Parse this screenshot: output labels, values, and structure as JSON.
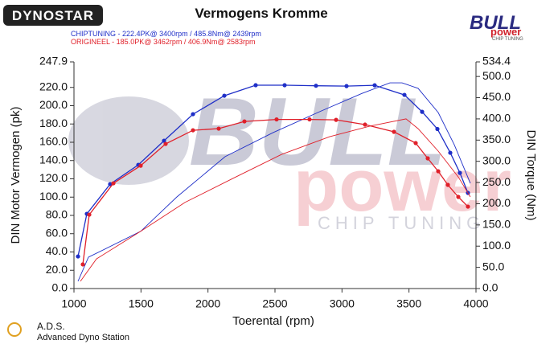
{
  "chart_data": {
    "type": "line",
    "title": "Vermogens Kromme",
    "logos": {
      "left": "DYNOSTAR",
      "brand": "BULL",
      "brand2": "power",
      "brand3": "CHIP TUNING",
      "station": "A.D.S.",
      "station_name": "Advanced Dyno Station"
    },
    "x_label": "Toerental (rpm)",
    "y_label": "DIN Motor Vermogen (pk)",
    "y2_label": "DIN Torque (Nm)",
    "xlim": [
      1000,
      4000
    ],
    "xticks": [
      1000,
      1500,
      2000,
      2500,
      3000,
      3500,
      4000
    ],
    "ylim": [
      0,
      247.9
    ],
    "yticks": [
      {
        "value": 0,
        "label": "0.0"
      },
      {
        "value": 20,
        "label": "20.0"
      },
      {
        "value": 40,
        "label": "40.0"
      },
      {
        "value": 60,
        "label": "60.0"
      },
      {
        "value": 80,
        "label": "80.0"
      },
      {
        "value": 100,
        "label": "100.0"
      },
      {
        "value": 120,
        "label": "120.0"
      },
      {
        "value": 140,
        "label": "140.0"
      },
      {
        "value": 160,
        "label": "160.0"
      },
      {
        "value": 180,
        "label": "180.0"
      },
      {
        "value": 200,
        "label": "200.0"
      },
      {
        "value": 220,
        "label": "220.0"
      },
      {
        "value": 247.9,
        "label": "247.9"
      }
    ],
    "y2lim": [
      0,
      534.4
    ],
    "y2ticks": [
      {
        "value": 0,
        "label": "0.0"
      },
      {
        "value": 50,
        "label": "50.0"
      },
      {
        "value": 100,
        "label": "100.0"
      },
      {
        "value": 150,
        "label": "150.0"
      },
      {
        "value": 200,
        "label": "200.0"
      },
      {
        "value": 250,
        "label": "250.0"
      },
      {
        "value": 300,
        "label": "300.0"
      },
      {
        "value": 350,
        "label": "350.0"
      },
      {
        "value": 400,
        "label": "400.0"
      },
      {
        "value": 450,
        "label": "450.0"
      },
      {
        "value": 500,
        "label": "500.0"
      },
      {
        "value": 534.4,
        "label": "534.4"
      }
    ],
    "series": [
      {
        "name": "CHIPTUNING - 222.4PK@ 3400rpm / 485.8Nm@ 2439rpm",
        "color": "#1f2fc8",
        "markers": true,
        "x": [
          1030,
          1096,
          1270,
          1480,
          1672,
          1888,
          2122,
          2356,
          2572,
          2806,
          3034,
          3244,
          3466,
          3598,
          3712,
          3808,
          3880,
          3940
        ],
        "values": [
          35.1,
          81.7,
          114.2,
          135.3,
          161.7,
          190.7,
          210.9,
          222.4,
          222.4,
          221.8,
          221.4,
          222.3,
          211.8,
          193.3,
          174.5,
          148.5,
          126.5,
          104.6
        ]
      },
      {
        "color": "#1f2fc8",
        "axis": "y2",
        "x": [
          1030,
          1108,
          1498,
          1768,
          2128,
          2488,
          2848,
          3148,
          3358,
          3448,
          3568,
          3718,
          3838,
          3958
        ],
        "values": [
          17,
          74,
          135,
          216,
          311,
          368,
          419,
          460,
          485,
          485,
          472,
          415,
          339,
          248
        ]
      },
      {
        "name": "ORIGINEEL - 185.0PK@ 3462rpm / 406.9Nm@ 2583rpm",
        "color": "#e0202a",
        "markers": true,
        "x": [
          1066,
          1114,
          1294,
          1498,
          1684,
          1888,
          2080,
          2272,
          2512,
          2758,
          2956,
          3172,
          3388,
          3550,
          3640,
          3718,
          3790,
          3868,
          3940
        ],
        "values": [
          26.4,
          80.8,
          115.1,
          134.4,
          158.2,
          173.1,
          174.9,
          182.8,
          185.0,
          185.0,
          184.5,
          179.3,
          171.4,
          159.1,
          142.4,
          128.3,
          113.4,
          100.2,
          89.6
        ]
      },
      {
        "color": "#e0202a",
        "axis": "y2",
        "x": [
          1048,
          1168,
          1498,
          1828,
          2188,
          2548,
          2908,
          3208,
          3478,
          3568,
          3718,
          3868,
          3958
        ],
        "values": [
          17,
          70,
          135,
          203,
          260,
          316,
          358,
          383,
          400,
          377,
          324,
          263,
          216
        ]
      }
    ]
  }
}
